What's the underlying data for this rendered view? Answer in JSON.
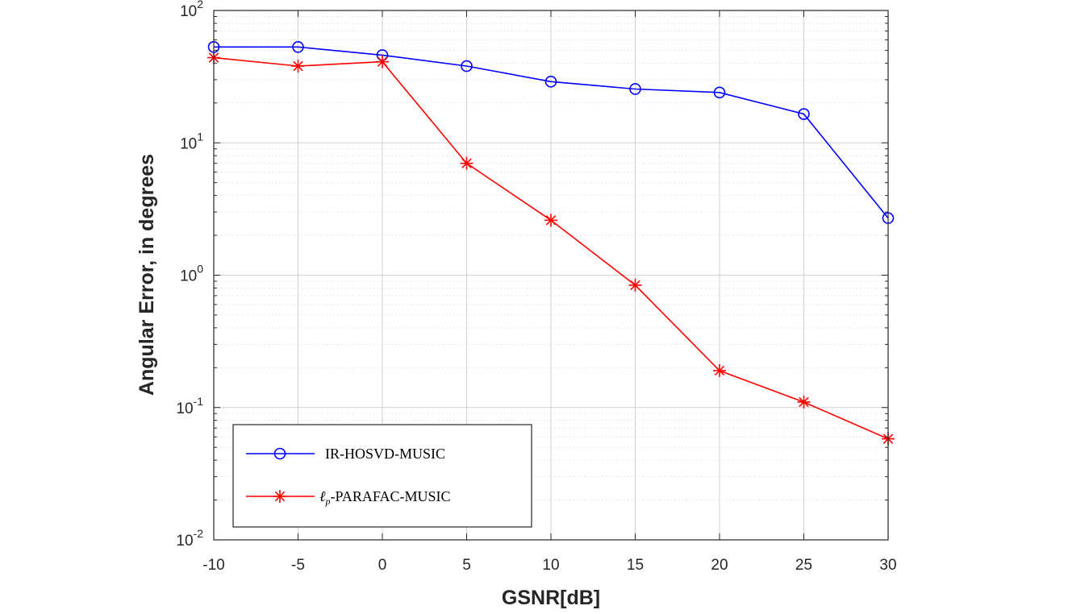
{
  "chart_data": {
    "type": "line",
    "xlabel": "GSNR[dB]",
    "ylabel": "Angular Error, in degrees",
    "x": [
      -10,
      -5,
      0,
      5,
      10,
      15,
      20,
      25,
      30
    ],
    "xlim": [
      -10,
      30
    ],
    "ylim": [
      0.01,
      100
    ],
    "yscale": "log",
    "x_ticks": [
      "-10",
      "-5",
      "0",
      "5",
      "10",
      "15",
      "20",
      "25",
      "30"
    ],
    "y_ticks": [
      {
        "value": 0.01,
        "base": "10",
        "exp": "-2"
      },
      {
        "value": 0.1,
        "base": "10",
        "exp": "-1"
      },
      {
        "value": 1,
        "base": "10",
        "exp": "0"
      },
      {
        "value": 10,
        "base": "10",
        "exp": "1"
      },
      {
        "value": 100,
        "base": "10",
        "exp": "2"
      }
    ],
    "grid": true,
    "minor_grid": true,
    "legend_position": "bottom-left",
    "series": [
      {
        "name": "IR-HOSVD-MUSIC",
        "color": "#0000ff",
        "marker": "circle",
        "values": [
          53,
          53,
          46,
          38,
          29,
          25.5,
          24,
          16.5,
          2.7
        ]
      },
      {
        "name_main": "ℓ",
        "name_sub": "p",
        "name_rest": "-PARAFAC-MUSIC",
        "color": "#ff0000",
        "marker": "asterisk",
        "values": [
          44,
          38,
          41,
          7,
          2.6,
          0.84,
          0.19,
          0.11,
          0.058
        ]
      }
    ]
  }
}
